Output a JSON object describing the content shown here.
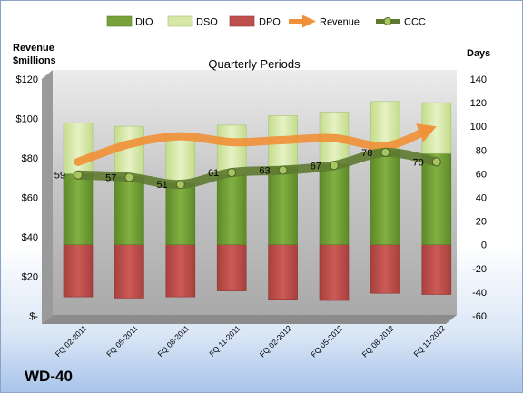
{
  "chart_data": {
    "type": "bar",
    "subtitle": "Quarterly Periods",
    "company": "WD-40",
    "left_axis": {
      "title_line1": "Revenue",
      "title_line2": "$millions",
      "min": 0,
      "max": 120,
      "step": 20,
      "tick_labels": [
        "$-",
        "$20",
        "$40",
        "$60",
        "$80",
        "$100",
        "$120"
      ]
    },
    "right_axis": {
      "title": "Days",
      "min": -60,
      "max": 140,
      "step": 20,
      "tick_labels": [
        "-60",
        "-40",
        "-20",
        "0",
        "20",
        "40",
        "60",
        "80",
        "100",
        "120",
        "140"
      ]
    },
    "categories": [
      "FQ 02-2011",
      "FQ 05-2011",
      "FQ 08-2011",
      "FQ 11-2011",
      "FQ 02-2012",
      "FQ 05-2012",
      "FQ 08-2012",
      "FQ 11-2012"
    ],
    "series": [
      {
        "name": "DIO",
        "axis": "right",
        "kind": "stacked-bar",
        "color": "#77a13a",
        "values": [
          60,
          58,
          52,
          59,
          66,
          68,
          80,
          77
        ]
      },
      {
        "name": "DSO",
        "axis": "right",
        "kind": "stacked-bar",
        "color": "#d5e8a8",
        "values": [
          43,
          42,
          38,
          42,
          43,
          44,
          41,
          43
        ]
      },
      {
        "name": "DPO",
        "axis": "right",
        "kind": "negative-bar",
        "color": "#c0504d",
        "values": [
          -44,
          -45,
          -44,
          -39,
          -46,
          -47,
          -41,
          -42
        ]
      },
      {
        "name": "Revenue",
        "axis": "left",
        "kind": "arrow-line",
        "color": "#f0913a",
        "values": [
          78,
          87,
          91,
          88,
          89,
          90,
          86,
          96
        ]
      },
      {
        "name": "CCC",
        "axis": "right",
        "kind": "line",
        "color": "#5e7a31",
        "values": [
          59,
          57,
          51,
          61,
          63,
          67,
          78,
          70
        ]
      }
    ],
    "data_labels": [
      "59",
      "57",
      "51",
      "61",
      "63",
      "67",
      "78",
      "70"
    ],
    "legend": {
      "placement": "top",
      "items": [
        {
          "label": "DIO",
          "color": "#77a13a",
          "shape": "rect"
        },
        {
          "label": "DSO",
          "color": "#d5e8a8",
          "shape": "rect"
        },
        {
          "label": "DPO",
          "color": "#c0504d",
          "shape": "rect"
        },
        {
          "label": "Revenue",
          "color": "#f0913a",
          "shape": "arrow"
        },
        {
          "label": "CCC",
          "color": "#5e7a31",
          "shape": "line-dot"
        }
      ]
    },
    "grid": false
  }
}
